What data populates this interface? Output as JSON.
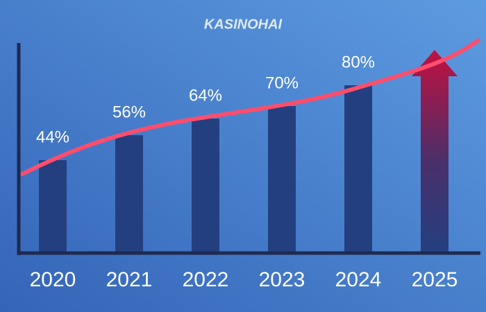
{
  "logo": "KASINOHAI",
  "chart_data": {
    "type": "bar",
    "categories": [
      "2020",
      "2021",
      "2022",
      "2023",
      "2024",
      "2025"
    ],
    "values": [
      44,
      56,
      64,
      70,
      80,
      97
    ],
    "value_labels": [
      "44%",
      "56%",
      "64%",
      "70%",
      "80%",
      null
    ],
    "color": "#243f80"
  }
}
